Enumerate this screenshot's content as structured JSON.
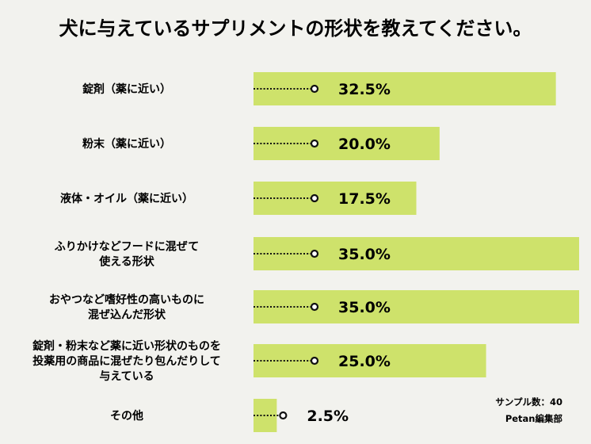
{
  "chart_data": {
    "type": "bar",
    "orientation": "horizontal",
    "title": "犬に与えているサプリメントの形状を教えてください。",
    "categories": [
      [
        "錠剤（薬に近い）"
      ],
      [
        "粉末（薬に近い）"
      ],
      [
        "液体・オイル（薬に近い）"
      ],
      [
        "ふりかけなどフードに混ぜて",
        "使える形状"
      ],
      [
        "おやつなど嗜好性の高いものに",
        "混ぜ込んだ形状"
      ],
      [
        "錠剤・粉末など薬に近い形状のものを",
        "投薬用の商品に混ぜたり包んだりして",
        "与えている"
      ],
      [
        "その他"
      ]
    ],
    "values": [
      32.5,
      20.0,
      17.5,
      35.0,
      35.0,
      25.0,
      2.5
    ],
    "value_labels": [
      "32.5%",
      "20.0%",
      "17.5%",
      "35.0%",
      "35.0%",
      "25.0%",
      "2.5%"
    ],
    "xlim": [
      0,
      35
    ],
    "bar_color": "#cee26b",
    "grid": false,
    "sample_note": "サンプル数：40",
    "credit": "Petan編集部"
  }
}
